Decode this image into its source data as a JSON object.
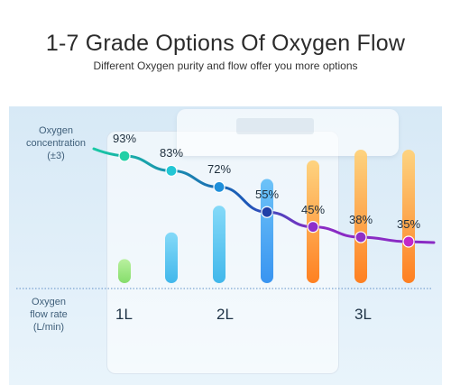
{
  "header": {
    "title": "1-7 Grade Options Of Oxygen Flow",
    "subtitle": "Different Oxygen purity and flow offer you more options"
  },
  "labels": {
    "concentration_line1": "Oxygen",
    "concentration_line2": "concentration",
    "concentration_line3": "(±3)",
    "flow_line1": "Oxygen",
    "flow_line2": "flow rate",
    "flow_line3": "(L/min)"
  },
  "flow_ticks": [
    "1L",
    "2L",
    "3L"
  ],
  "chart_data": {
    "type": "line",
    "grades": [
      1,
      2,
      3,
      4,
      5,
      6,
      7
    ],
    "concentration_labels": [
      "93%",
      "83%",
      "72%",
      "55%",
      "45%",
      "38%",
      "35%"
    ],
    "concentration": [
      93,
      83,
      72,
      55,
      45,
      38,
      35
    ],
    "bar_level": [
      0.18,
      0.38,
      0.58,
      0.78,
      0.92,
      1.0,
      1.0
    ],
    "colors": {
      "line_start": "#18c8a4",
      "line_mid": "#1c57b8",
      "line_end": "#8a2bc4",
      "bar_green": "#7fdc63",
      "bar_cyan": "#38b4ea",
      "bar_blue": "#2f8ff0",
      "bar_orange_top": "#ffd27a",
      "bar_orange_bottom": "#ff7a16"
    }
  }
}
